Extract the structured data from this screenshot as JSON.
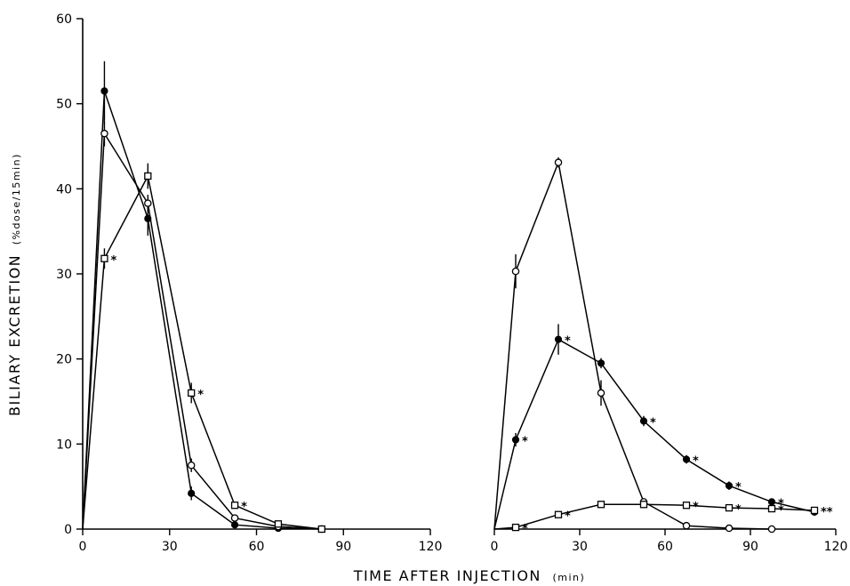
{
  "chart_data": [
    {
      "type": "line",
      "panel": "left",
      "title": "",
      "xlabel": "TIME AFTER INJECTION",
      "xlabel_unit": "(min)",
      "ylabel": "BILIARY EXCRETION",
      "ylabel_unit": "(%dose/15min)",
      "xlim": [
        0,
        120
      ],
      "ylim": [
        0,
        60
      ],
      "xticks": [
        "0",
        "30",
        "60",
        "90",
        "120"
      ],
      "yticks": [
        "0",
        "10",
        "20",
        "30",
        "40",
        "50",
        "60"
      ],
      "grid": false,
      "series": [
        {
          "marker": "filled-circle",
          "x": [
            0,
            7.5,
            22.5,
            37.5,
            52.5,
            67.5,
            82.5
          ],
          "y": [
            0,
            51.5,
            36.5,
            4.2,
            0.5,
            0.1,
            0
          ],
          "err": [
            0,
            3.5,
            2,
            0.8,
            0,
            0,
            0
          ],
          "sig": [
            "",
            "",
            "",
            "",
            "",
            "",
            ""
          ]
        },
        {
          "marker": "open-circle",
          "x": [
            0,
            7.5,
            22.5,
            37.5,
            52.5,
            67.5,
            82.5
          ],
          "y": [
            0,
            46.5,
            38.3,
            7.5,
            1.3,
            0.3,
            0
          ],
          "err": [
            0,
            1.5,
            1,
            0.8,
            0.4,
            0,
            0
          ],
          "sig": [
            "",
            "",
            "",
            "",
            "",
            "",
            ""
          ]
        },
        {
          "marker": "open-square",
          "x": [
            0,
            7.5,
            22.5,
            37.5,
            52.5,
            67.5,
            82.5
          ],
          "y": [
            0,
            31.8,
            41.5,
            16,
            2.8,
            0.6,
            0
          ],
          "err": [
            0,
            1.2,
            1.5,
            1.2,
            0.4,
            0,
            0
          ],
          "sig": [
            "",
            "*",
            "",
            "*",
            "*",
            "",
            ""
          ]
        }
      ]
    },
    {
      "type": "line",
      "panel": "right",
      "title": "",
      "xlim": [
        0,
        120
      ],
      "ylim": [
        0,
        60
      ],
      "xticks": [
        "0",
        "30",
        "60",
        "90",
        "120"
      ],
      "grid": false,
      "series": [
        {
          "marker": "open-circle",
          "x": [
            0,
            7.5,
            22.5,
            37.5,
            52.5,
            67.5,
            82.5,
            97.5
          ],
          "y": [
            0,
            30.3,
            43.1,
            16,
            3.2,
            0.4,
            0.1,
            0
          ],
          "err": [
            0,
            2,
            0.6,
            1.5,
            0.3,
            0,
            0,
            0
          ],
          "sig": [
            "",
            "",
            "",
            "",
            "",
            "",
            "",
            ""
          ]
        },
        {
          "marker": "filled-circle",
          "x": [
            0,
            7.5,
            22.5,
            37.5,
            52.5,
            67.5,
            82.5,
            97.5,
            112.5
          ],
          "y": [
            0,
            10.5,
            22.3,
            19.5,
            12.7,
            8.2,
            5.1,
            3.2,
            2
          ],
          "err": [
            0,
            0.8,
            1.8,
            0.6,
            0.6,
            0.5,
            0.5,
            0.3,
            0.2
          ],
          "sig": [
            "",
            "*",
            "*",
            "",
            "*",
            "*",
            "*",
            "*",
            ""
          ]
        },
        {
          "marker": "open-square",
          "x": [
            0,
            7.5,
            22.5,
            37.5,
            52.5,
            67.5,
            82.5,
            97.5,
            112.5
          ],
          "y": [
            0,
            0.2,
            1.7,
            2.9,
            2.9,
            2.8,
            2.5,
            2.4,
            2.2
          ],
          "err": [
            0,
            0,
            0,
            0,
            0,
            0,
            0,
            0,
            0
          ],
          "sig": [
            "",
            "*",
            "*",
            "",
            "",
            "*",
            "*",
            "*",
            "**"
          ]
        }
      ]
    }
  ]
}
